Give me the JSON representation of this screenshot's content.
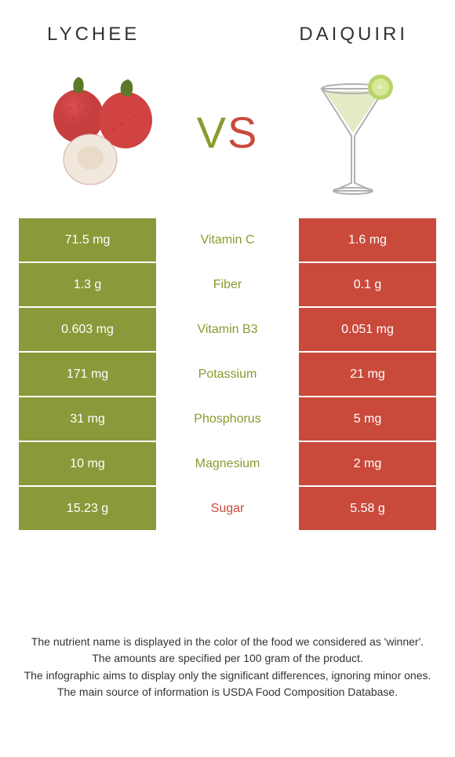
{
  "header": {
    "left_title": "LYCHEE",
    "right_title": "DAIQUIRI",
    "vs_v": "V",
    "vs_s": "S"
  },
  "colors": {
    "left": "#8a9a3a",
    "right": "#c94a3b",
    "left_text": "#8a9a2e",
    "right_text": "#c94a3b"
  },
  "rows": [
    {
      "left": "71.5 mg",
      "label": "Vitamin C",
      "right": "1.6 mg",
      "winner": "left"
    },
    {
      "left": "1.3 g",
      "label": "Fiber",
      "right": "0.1 g",
      "winner": "left"
    },
    {
      "left": "0.603 mg",
      "label": "Vitamin B3",
      "right": "0.051 mg",
      "winner": "left"
    },
    {
      "left": "171 mg",
      "label": "Potassium",
      "right": "21 mg",
      "winner": "left"
    },
    {
      "left": "31 mg",
      "label": "Phosphorus",
      "right": "5 mg",
      "winner": "left"
    },
    {
      "left": "10 mg",
      "label": "Magnesium",
      "right": "2 mg",
      "winner": "left"
    },
    {
      "left": "15.23 g",
      "label": "Sugar",
      "right": "5.58 g",
      "winner": "right"
    }
  ],
  "footer": {
    "line1": "The nutrient name is displayed in the color of the food we considered as 'winner'.",
    "line2": "The amounts are specified per 100 gram of the product.",
    "line3": "The infographic aims to display only the significant differences, ignoring minor ones.",
    "line4": "The main source of information is USDA Food Composition Database."
  }
}
